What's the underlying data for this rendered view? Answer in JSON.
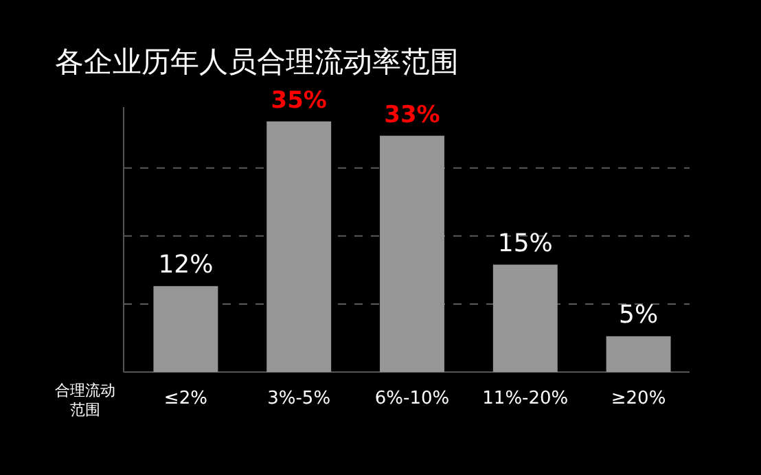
{
  "chart_data": {
    "type": "bar",
    "title": "各企业历年人员合理流动率范围",
    "xlabel": "合理流动范围",
    "categories": [
      "≤2%",
      "3%-5%",
      "6%-10%",
      "11%-20%",
      "≥20%"
    ],
    "values": [
      12,
      35,
      33,
      15,
      5
    ],
    "value_labels": [
      "12%",
      "35%",
      "33%",
      "15%",
      "5%"
    ],
    "color": "#969696",
    "ylim": [
      0,
      37
    ],
    "yticks": [
      {
        "value": 9.5,
        "label": null
      },
      {
        "value": 19,
        "label": null
      },
      {
        "value": 28.5,
        "label": null
      }
    ],
    "grid": "y",
    "tick_labels": "x"
  }
}
